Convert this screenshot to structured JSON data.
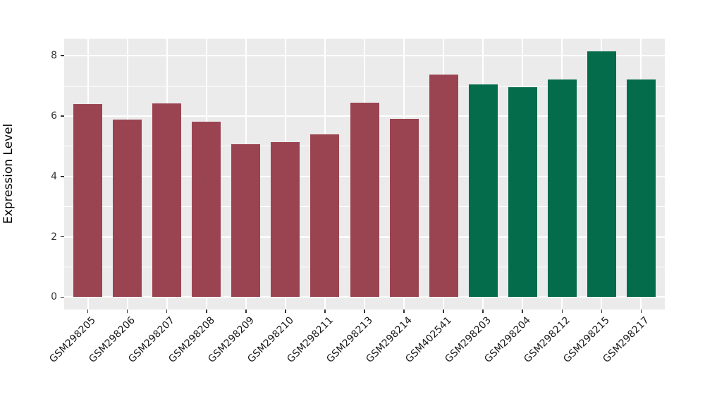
{
  "chart_data": {
    "type": "bar",
    "title": "",
    "xlabel": "",
    "ylabel": "Expression Level",
    "categories": [
      "GSM298205",
      "GSM298206",
      "GSM298207",
      "GSM298208",
      "GSM298209",
      "GSM298210",
      "GSM298211",
      "GSM298213",
      "GSM298214",
      "GSM402541",
      "GSM298203",
      "GSM298204",
      "GSM298212",
      "GSM298215",
      "GSM298217"
    ],
    "values": [
      6.4,
      5.89,
      6.43,
      5.81,
      5.07,
      5.13,
      5.4,
      6.45,
      5.9,
      7.37,
      7.04,
      6.95,
      7.22,
      8.15,
      7.21
    ],
    "bar_colors": [
      "#9B4451",
      "#9B4451",
      "#9B4451",
      "#9B4451",
      "#9B4451",
      "#9B4451",
      "#9B4451",
      "#9B4451",
      "#9B4451",
      "#9B4451",
      "#046B4B",
      "#046B4B",
      "#046B4B",
      "#046B4B",
      "#046B4B"
    ],
    "yticks": [
      0,
      2,
      4,
      6,
      8
    ],
    "ytick_labels": [
      "0",
      "2",
      "4",
      "6",
      "8"
    ],
    "minor_yticks": [
      1,
      3,
      5,
      7
    ],
    "ylim": [
      0,
      8.6
    ],
    "x_tick_angle": -45,
    "grid": true,
    "legend_position": "none",
    "panel_background": "#EBEBEB",
    "grid_color": "#FFFFFF",
    "axis_text_color": "#333333",
    "axis_title_color": "#000000"
  }
}
